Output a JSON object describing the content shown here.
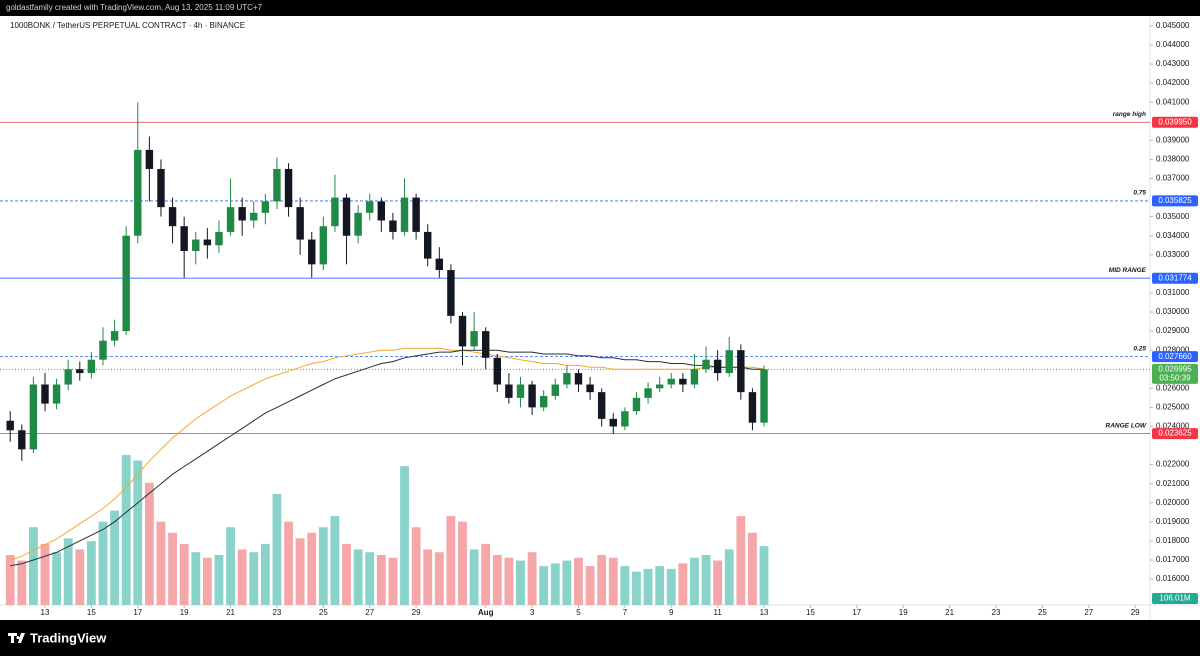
{
  "header": {
    "credit": "goldastfamily created with TradingView.com, Aug 13, 2025 11:09 UTC+7",
    "footer_logo": "TradingView"
  },
  "chart_data": {
    "type": "candlestick",
    "title": "1000BONK / TetherUS PERPETUAL CONTRACT · 4h · BINANCE",
    "candles": {
      "open": [
        0.0243,
        0.0238,
        0.0228,
        0.0262,
        0.0252,
        0.0262,
        0.027,
        0.0268,
        0.0275,
        0.0285,
        0.029,
        0.034,
        0.0385,
        0.0375,
        0.0355,
        0.0345,
        0.0332,
        0.0338,
        0.0335,
        0.0342,
        0.0355,
        0.0348,
        0.0352,
        0.0358,
        0.0375,
        0.0355,
        0.0338,
        0.0325,
        0.0345,
        0.036,
        0.034,
        0.0352,
        0.0358,
        0.0348,
        0.0342,
        0.036,
        0.0342,
        0.0328,
        0.0322,
        0.0298,
        0.0282,
        0.029,
        0.0276,
        0.0262,
        0.0255,
        0.0262,
        0.025,
        0.0256,
        0.0262,
        0.0268,
        0.0262,
        0.0258,
        0.0244,
        0.024,
        0.0248,
        0.0255,
        0.026,
        0.0262,
        0.0265,
        0.0262,
        0.027,
        0.0275,
        0.0268,
        0.028,
        0.0258,
        0.0242
      ],
      "high": [
        0.0248,
        0.0241,
        0.0266,
        0.0268,
        0.0265,
        0.0275,
        0.0274,
        0.0279,
        0.0292,
        0.0296,
        0.0345,
        0.041,
        0.0392,
        0.038,
        0.036,
        0.035,
        0.0342,
        0.0344,
        0.0348,
        0.037,
        0.036,
        0.0358,
        0.0362,
        0.0381,
        0.0378,
        0.036,
        0.0342,
        0.035,
        0.0372,
        0.0362,
        0.0356,
        0.0362,
        0.036,
        0.0352,
        0.037,
        0.0362,
        0.0346,
        0.0334,
        0.0325,
        0.03,
        0.03,
        0.0292,
        0.0278,
        0.0268,
        0.0266,
        0.0264,
        0.0259,
        0.0265,
        0.0272,
        0.027,
        0.0266,
        0.026,
        0.0247,
        0.025,
        0.0258,
        0.0263,
        0.0266,
        0.0268,
        0.0268,
        0.0278,
        0.0282,
        0.028,
        0.0287,
        0.0283,
        0.026,
        0.0272
      ],
      "low": [
        0.0232,
        0.0222,
        0.0226,
        0.0248,
        0.0249,
        0.0259,
        0.0264,
        0.0265,
        0.0272,
        0.0282,
        0.0288,
        0.0336,
        0.0358,
        0.035,
        0.0336,
        0.0318,
        0.0325,
        0.0328,
        0.0331,
        0.034,
        0.034,
        0.0344,
        0.0346,
        0.0354,
        0.035,
        0.033,
        0.0318,
        0.0322,
        0.0342,
        0.0325,
        0.0336,
        0.0348,
        0.0342,
        0.0338,
        0.034,
        0.0338,
        0.0324,
        0.0318,
        0.0294,
        0.0272,
        0.028,
        0.027,
        0.0258,
        0.0252,
        0.025,
        0.0246,
        0.0248,
        0.0254,
        0.026,
        0.0258,
        0.0254,
        0.024,
        0.0236,
        0.0238,
        0.0246,
        0.0252,
        0.0258,
        0.026,
        0.0258,
        0.026,
        0.0268,
        0.0264,
        0.0266,
        0.0254,
        0.0238,
        0.024
      ],
      "close": [
        0.0238,
        0.0228,
        0.0262,
        0.0252,
        0.0262,
        0.027,
        0.0268,
        0.0275,
        0.0285,
        0.029,
        0.034,
        0.0385,
        0.0375,
        0.0355,
        0.0345,
        0.0332,
        0.0338,
        0.0335,
        0.0342,
        0.0355,
        0.0348,
        0.0352,
        0.0358,
        0.0375,
        0.0355,
        0.0338,
        0.0325,
        0.0345,
        0.036,
        0.034,
        0.0352,
        0.0358,
        0.0348,
        0.0342,
        0.036,
        0.0342,
        0.0328,
        0.0322,
        0.0298,
        0.0282,
        0.029,
        0.0276,
        0.0262,
        0.0255,
        0.0262,
        0.025,
        0.0256,
        0.0262,
        0.0268,
        0.0262,
        0.0258,
        0.0244,
        0.024,
        0.0248,
        0.0255,
        0.026,
        0.0262,
        0.0265,
        0.0262,
        0.027,
        0.0275,
        0.0268,
        0.028,
        0.0258,
        0.0242,
        0.026995
      ]
    },
    "up_color": "#1f8a46",
    "down_color": "#131722",
    "volume": [
      90,
      80,
      140,
      110,
      95,
      120,
      100,
      115,
      150,
      170,
      270,
      260,
      220,
      150,
      130,
      110,
      95,
      85,
      90,
      140,
      100,
      95,
      110,
      200,
      150,
      120,
      130,
      140,
      160,
      110,
      100,
      95,
      90,
      85,
      250,
      140,
      100,
      95,
      160,
      150,
      100,
      110,
      90,
      85,
      80,
      95,
      70,
      75,
      80,
      85,
      70,
      90,
      85,
      70,
      60,
      65,
      70,
      65,
      75,
      85,
      90,
      80,
      100,
      160,
      130,
      106.01
    ],
    "volume_up_color": "#8ad3ca",
    "volume_down_color": "#f5a6a9",
    "volume_label": "106.01M",
    "volume_label_color": "#22ab94",
    "moving_averages": [
      {
        "color": "#f7a829",
        "values": [
          0.017,
          0.0172,
          0.0175,
          0.0178,
          0.0181,
          0.0185,
          0.0189,
          0.0193,
          0.0197,
          0.0202,
          0.0208,
          0.0215,
          0.0222,
          0.0228,
          0.0234,
          0.0239,
          0.0244,
          0.0248,
          0.0252,
          0.0256,
          0.0259,
          0.0262,
          0.0265,
          0.0267,
          0.0269,
          0.0271,
          0.0273,
          0.0274,
          0.0276,
          0.0277,
          0.0278,
          0.0279,
          0.028,
          0.028,
          0.0281,
          0.0281,
          0.0281,
          0.0281,
          0.028,
          0.028,
          0.0279,
          0.0278,
          0.0277,
          0.0276,
          0.0275,
          0.0274,
          0.0273,
          0.0273,
          0.0272,
          0.0272,
          0.0271,
          0.0271,
          0.027,
          0.027,
          0.027,
          0.027,
          0.027,
          0.027,
          0.027,
          0.027,
          0.0271,
          0.0271,
          0.0271,
          0.0271,
          0.0271,
          0.027
        ]
      },
      {
        "color": "#2a2e39",
        "values": [
          0.0167,
          0.0168,
          0.017,
          0.0172,
          0.0174,
          0.0177,
          0.018,
          0.0183,
          0.0186,
          0.019,
          0.0195,
          0.02,
          0.0205,
          0.021,
          0.0215,
          0.0219,
          0.0223,
          0.0227,
          0.0231,
          0.0235,
          0.0239,
          0.0243,
          0.0247,
          0.025,
          0.0253,
          0.0256,
          0.0259,
          0.0262,
          0.0265,
          0.0267,
          0.0269,
          0.0271,
          0.0273,
          0.0274,
          0.0276,
          0.0277,
          0.0278,
          0.0279,
          0.0279,
          0.028,
          0.028,
          0.028,
          0.028,
          0.0279,
          0.0279,
          0.0279,
          0.0278,
          0.0278,
          0.0278,
          0.0277,
          0.0277,
          0.0276,
          0.0276,
          0.0275,
          0.0275,
          0.0274,
          0.0274,
          0.0273,
          0.0273,
          0.0272,
          0.0272,
          0.0271,
          0.0271,
          0.0271,
          0.027,
          0.027
        ]
      }
    ],
    "levels": [
      {
        "name": "range high",
        "value": 0.03995,
        "value_label": "0.039950",
        "color": "#f23645",
        "dashed": false,
        "italic_lower": true
      },
      {
        "name": "0.75",
        "value": 0.035825,
        "value_label": "0.035825",
        "color": "#2962ff",
        "dashed": true
      },
      {
        "name": "MID RANGE",
        "value": 0.031774,
        "value_label": "0.031774",
        "color": "#2962ff",
        "dashed": false
      },
      {
        "name": "0.25",
        "value": 0.02766,
        "value_label": "0.027660",
        "color": "#2962ff",
        "dashed": true
      },
      {
        "name": "RANGE LOW",
        "value": 0.023625,
        "value_label": "0.023625",
        "color": "#f23645",
        "dashed": false
      }
    ],
    "last_price_color": "#4caf50",
    "countdown": "03:50:39",
    "ylim": [
      0.01464,
      0.04552
    ],
    "yticks": [
      {
        "value": 0.045,
        "label": "0.045000"
      },
      {
        "value": 0.044,
        "label": "0.044000"
      },
      {
        "value": 0.043,
        "label": "0.043000"
      },
      {
        "value": 0.042,
        "label": "0.042000"
      },
      {
        "value": 0.041,
        "label": "0.041000"
      },
      {
        "value": 0.039,
        "label": "0.039000"
      },
      {
        "value": 0.038,
        "label": "0.038000"
      },
      {
        "value": 0.037,
        "label": "0.037000"
      },
      {
        "value": 0.035,
        "label": "0.035000"
      },
      {
        "value": 0.034,
        "label": "0.034000"
      },
      {
        "value": 0.033,
        "label": "0.033000"
      },
      {
        "value": 0.031,
        "label": "0.031000"
      },
      {
        "value": 0.03,
        "label": "0.030000"
      },
      {
        "value": 0.029,
        "label": "0.029000"
      },
      {
        "value": 0.028,
        "label": "0.028000"
      },
      {
        "value": 0.026,
        "label": "0.026000"
      },
      {
        "value": 0.025,
        "label": "0.025000"
      },
      {
        "value": 0.024,
        "label": "0.024000"
      },
      {
        "value": 0.022,
        "label": "0.022000"
      },
      {
        "value": 0.021,
        "label": "0.021000"
      },
      {
        "value": 0.02,
        "label": "0.020000"
      },
      {
        "value": 0.019,
        "label": "0.019000"
      },
      {
        "value": 0.018,
        "label": "0.018000"
      },
      {
        "value": 0.017,
        "label": "0.017000"
      },
      {
        "value": 0.016,
        "label": "0.016000"
      }
    ],
    "xlim": [
      -0.88,
      98.28
    ],
    "xticks": [
      {
        "value": 3,
        "label": "13"
      },
      {
        "value": 7,
        "label": "15"
      },
      {
        "value": 11,
        "label": "17"
      },
      {
        "value": 15,
        "label": "19"
      },
      {
        "value": 19,
        "label": "21"
      },
      {
        "value": 23,
        "label": "23"
      },
      {
        "value": 27,
        "label": "25"
      },
      {
        "value": 31,
        "label": "27"
      },
      {
        "value": 35,
        "label": "29"
      },
      {
        "value": 41,
        "label": "Aug"
      },
      {
        "value": 45,
        "label": "3"
      },
      {
        "value": 49,
        "label": "5"
      },
      {
        "value": 53,
        "label": "7"
      },
      {
        "value": 57,
        "label": "9"
      },
      {
        "value": 61,
        "label": "11"
      },
      {
        "value": 65,
        "label": "13"
      },
      {
        "value": 69,
        "label": "15"
      },
      {
        "value": 73,
        "label": "17"
      },
      {
        "value": 77,
        "label": "19"
      },
      {
        "value": 81,
        "label": "21"
      },
      {
        "value": 85,
        "label": "23"
      },
      {
        "value": 89,
        "label": "25"
      },
      {
        "value": 93,
        "label": "27"
      },
      {
        "value": 97,
        "label": "29"
      }
    ]
  }
}
